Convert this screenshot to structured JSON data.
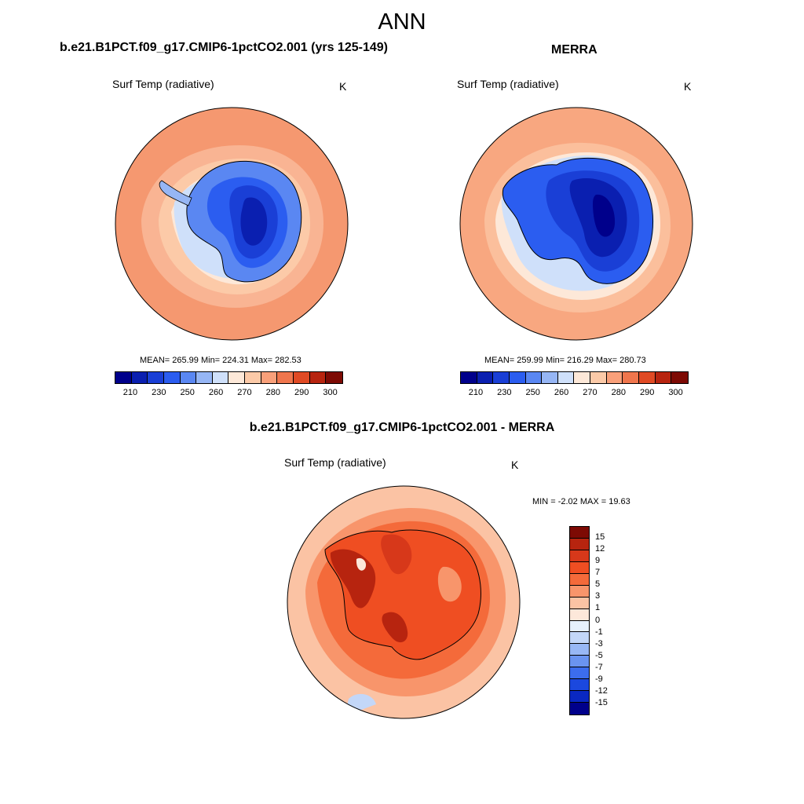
{
  "main_title": "ANN",
  "panels": {
    "model": {
      "title": "b.e21.B1PCT.f09_g17.CMIP6-1pctCO2.001 (yrs 125-149)",
      "variable": "Surf Temp (radiative)",
      "units": "K",
      "stats": "MEAN= 265.99  Min= 224.31  Max= 282.53",
      "colorbar_ticks": [
        "210",
        "230",
        "250",
        "260",
        "270",
        "280",
        "290",
        "300"
      ]
    },
    "obs": {
      "title": "MERRA",
      "variable": "Surf Temp (radiative)",
      "units": "K",
      "stats": "MEAN= 259.99  Min= 216.29  Max= 280.73",
      "colorbar_ticks": [
        "210",
        "230",
        "250",
        "260",
        "270",
        "280",
        "290",
        "300"
      ]
    },
    "diff": {
      "title": "b.e21.B1PCT.f09_g17.CMIP6-1pctCO2.001 - MERRA",
      "variable": "Surf Temp (radiative)",
      "units": "K",
      "stats": "MIN =  -2.02 MAX =  19.63",
      "colorbar_ticks": [
        "15",
        "12",
        "9",
        "7",
        "5",
        "3",
        "1",
        "0",
        "-1",
        "-3",
        "-5",
        "-7",
        "-9",
        "-12",
        "-15"
      ]
    }
  },
  "colors": {
    "abs_scale": [
      "#00008b",
      "#0a1fb0",
      "#1a3fd6",
      "#2b5df0",
      "#5a87f2",
      "#96b6f5",
      "#cfe0fa",
      "#fde8d8",
      "#fccaa8",
      "#f9a07a",
      "#f0764d",
      "#e04a24",
      "#b7240f",
      "#7d0a04"
    ],
    "diff_scale": [
      "#7d0a04",
      "#b7240f",
      "#d7381a",
      "#ef4e22",
      "#f46a3a",
      "#f8956b",
      "#fbc3a4",
      "#fde8da",
      "#e6f0fd",
      "#c3d7f8",
      "#98b8f5",
      "#6a94f0",
      "#3c6ded",
      "#1b48de",
      "#0a28c2",
      "#00008b"
    ]
  }
}
